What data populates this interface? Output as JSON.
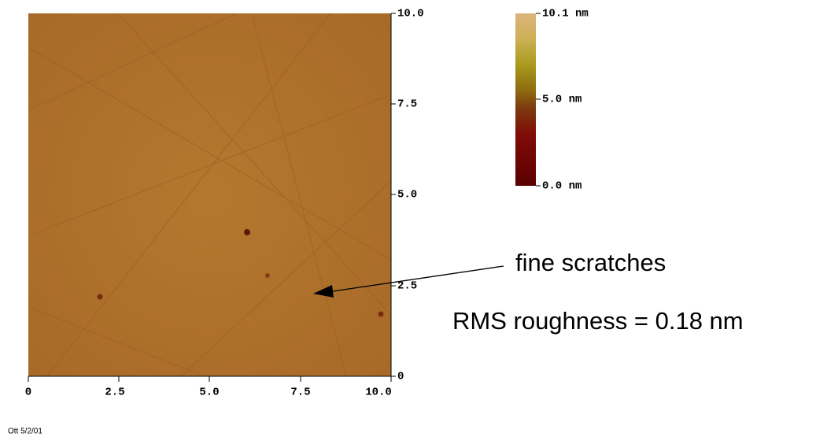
{
  "axes": {
    "x_ticks": [
      "0",
      "2.5",
      "5.0",
      "7.5",
      "10.0"
    ],
    "y_ticks": [
      "0",
      "2.5",
      "5.0",
      "7.5",
      "10.0"
    ]
  },
  "colorbar": {
    "labels": [
      "10.1 nm",
      "5.0 nm",
      "0.0 nm"
    ]
  },
  "annotations": {
    "arrow_label": "fine scratches",
    "roughness": "RMS roughness = 0.18 nm"
  },
  "footer": "Ott 5/2/01"
}
